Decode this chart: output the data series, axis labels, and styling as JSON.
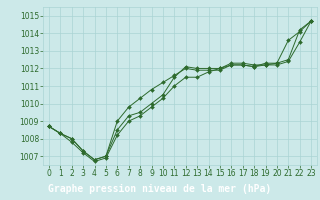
{
  "x": [
    0,
    1,
    2,
    3,
    4,
    5,
    6,
    7,
    8,
    9,
    10,
    11,
    12,
    13,
    14,
    15,
    16,
    17,
    18,
    19,
    20,
    21,
    22,
    23
  ],
  "line1": [
    1008.7,
    1008.3,
    1008.0,
    1007.3,
    1006.8,
    1007.0,
    1008.5,
    1009.3,
    1009.5,
    1010.0,
    1010.5,
    1011.5,
    1012.1,
    1012.0,
    1012.0,
    1012.0,
    1012.3,
    1012.3,
    1012.2,
    1012.2,
    1012.3,
    1012.5,
    1014.2,
    1014.7
  ],
  "line2": [
    1008.7,
    1008.3,
    1008.0,
    1007.3,
    1006.8,
    1007.0,
    1009.0,
    1009.8,
    1010.3,
    1010.8,
    1011.2,
    1011.6,
    1012.0,
    1011.9,
    1011.9,
    1011.9,
    1012.2,
    1012.2,
    1012.1,
    1012.3,
    1012.3,
    1013.6,
    1014.1,
    1014.7
  ],
  "line3": [
    1008.7,
    1008.3,
    1007.8,
    1007.2,
    1006.7,
    1006.9,
    1008.2,
    1009.0,
    1009.3,
    1009.8,
    1010.3,
    1011.0,
    1011.5,
    1011.5,
    1011.8,
    1012.0,
    1012.2,
    1012.2,
    1012.1,
    1012.2,
    1012.2,
    1012.4,
    1013.5,
    1014.7
  ],
  "ylim": [
    1006.5,
    1015.5
  ],
  "yticks": [
    1007,
    1008,
    1009,
    1010,
    1011,
    1012,
    1013,
    1014,
    1015
  ],
  "xlim": [
    -0.5,
    23.5
  ],
  "xticks": [
    0,
    1,
    2,
    3,
    4,
    5,
    6,
    7,
    8,
    9,
    10,
    11,
    12,
    13,
    14,
    15,
    16,
    17,
    18,
    19,
    20,
    21,
    22,
    23
  ],
  "line_color": "#2d6a2d",
  "marker": "D",
  "marker_size": 2.0,
  "bg_color": "#cce9e9",
  "grid_color": "#aad4d4",
  "xlabel": "Graphe pression niveau de la mer (hPa)",
  "xlabel_bg": "#2d6a2d",
  "xlabel_color": "#ffffff",
  "tick_fontsize": 5.5,
  "label_fontsize": 7.0
}
